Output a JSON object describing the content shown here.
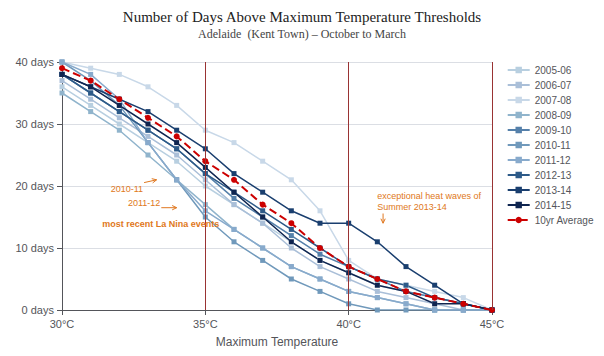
{
  "chart_data": {
    "type": "line",
    "title": "Number of Days Above Maximum Temperature Thresholds",
    "subtitle": "Adelaide  (Kent Town) – October to March",
    "xlabel": "Maximum Temperature",
    "x": [
      30,
      31,
      32,
      33,
      34,
      35,
      36,
      37,
      38,
      39,
      40,
      41,
      42,
      43,
      44,
      45
    ],
    "xlim": [
      30,
      45
    ],
    "ylim": [
      0,
      40
    ],
    "xticks": [
      {
        "value": 30,
        "label": "30°C"
      },
      {
        "value": 35,
        "label": "35°C"
      },
      {
        "value": 40,
        "label": "40°C"
      },
      {
        "value": 45,
        "label": "45°C"
      }
    ],
    "yticks": [
      {
        "value": 0,
        "label": "0 days"
      },
      {
        "value": 10,
        "label": "10 days"
      },
      {
        "value": 20,
        "label": "20 days"
      },
      {
        "value": 30,
        "label": "30 days"
      },
      {
        "value": 40,
        "label": "40 days"
      }
    ],
    "grid": true,
    "legend": "right",
    "series": [
      {
        "name": "2005-06",
        "color": "#b8cfe0",
        "marker": "square",
        "values": [
          36,
          33,
          30,
          27,
          24,
          20,
          17,
          14,
          11,
          8,
          6,
          4,
          3,
          2,
          1,
          0
        ]
      },
      {
        "name": "2006-07",
        "color": "#aabfd8",
        "marker": "square",
        "values": [
          37,
          34,
          31,
          28,
          25,
          21,
          17,
          14,
          10,
          7,
          5,
          3,
          2,
          1,
          0,
          0
        ]
      },
      {
        "name": "2007-08",
        "color": "#c8d8e8",
        "marker": "square",
        "values": [
          40,
          39,
          38,
          36,
          33,
          29,
          27,
          24,
          21,
          16,
          8,
          5,
          4,
          3,
          2,
          0
        ]
      },
      {
        "name": "2008-09",
        "color": "#90b4cc",
        "marker": "square",
        "values": [
          35,
          32,
          29,
          25,
          21,
          17,
          13,
          10,
          7,
          5,
          3,
          2,
          1,
          0,
          0,
          0
        ]
      },
      {
        "name": "2009-10",
        "color": "#5580aa",
        "marker": "square",
        "values": [
          38,
          35,
          32,
          29,
          26,
          22,
          18,
          15,
          12,
          9,
          7,
          5,
          3,
          2,
          1,
          0
        ]
      },
      {
        "name": "2010-11",
        "color": "#7099bb",
        "marker": "square",
        "values": [
          40,
          37,
          33,
          27,
          21,
          15,
          11,
          8,
          5,
          3,
          1,
          0,
          0,
          0,
          0,
          0
        ]
      },
      {
        "name": "2011-12",
        "color": "#88aacc",
        "marker": "square",
        "values": [
          40,
          38,
          34,
          27,
          21,
          16,
          13,
          10,
          7,
          5,
          3,
          2,
          1,
          0,
          0,
          0
        ]
      },
      {
        "name": "2012-13",
        "color": "#2d5a88",
        "marker": "square",
        "values": [
          38,
          35,
          32,
          29,
          26,
          22,
          19,
          16,
          13,
          10,
          7,
          5,
          4,
          2,
          1,
          0
        ]
      },
      {
        "name": "2013-14",
        "color": "#1a3f6f",
        "marker": "square",
        "values": [
          38,
          36,
          34,
          32,
          29,
          26,
          22,
          19,
          16,
          14,
          14,
          11,
          7,
          4,
          1,
          0
        ]
      },
      {
        "name": "2014-15",
        "color": "#0f2550",
        "marker": "square",
        "values": [
          38,
          36,
          33,
          30,
          27,
          23,
          19,
          15,
          11,
          8,
          6,
          4,
          3,
          1,
          1,
          0
        ]
      },
      {
        "name": "10yr Average",
        "color": "#cc0000",
        "marker": "circle",
        "line_style": "dashed",
        "values": [
          39,
          37,
          34,
          31,
          28,
          24,
          21,
          17,
          14,
          10,
          7,
          5,
          3,
          2,
          1,
          0
        ]
      }
    ],
    "vlines": {
      "values": [
        35,
        40,
        45
      ],
      "color": "#993333"
    },
    "annotations": [
      {
        "text": "2010-11",
        "x": 31.7,
        "y": 19.5,
        "arrow_to": [
          33.3,
          21.0
        ],
        "color": "#e07820"
      },
      {
        "text": "2011-12",
        "x": 32.3,
        "y": 17.2,
        "arrow_to": [
          34.0,
          16.5
        ],
        "color": "#e07820"
      },
      {
        "text": "most recent La Nina events",
        "x": 31.4,
        "y": 13.8,
        "bold": true,
        "color": "#e07820"
      },
      {
        "text": "exceptional heat waves of\nSummer 2013-14",
        "x": 41.0,
        "y": 17.5,
        "arrow_to": [
          41.2,
          14.0
        ],
        "color": "#e07820"
      }
    ]
  }
}
